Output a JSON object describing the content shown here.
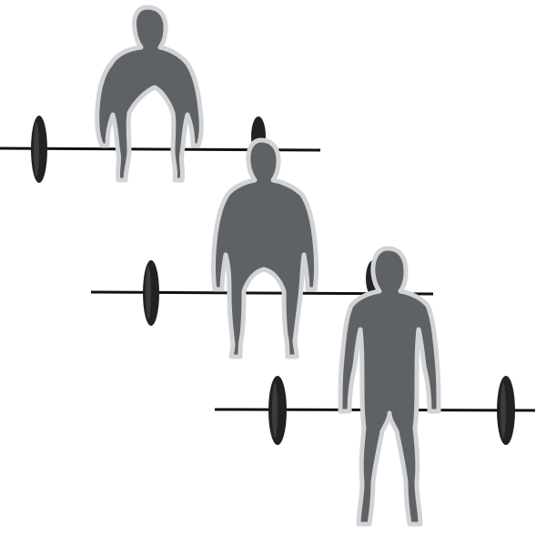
{
  "illustration": {
    "subject": "deadlift-sequence",
    "phases": [
      {
        "id": "setup"
      },
      {
        "id": "lift"
      },
      {
        "id": "lockout"
      }
    ]
  },
  "colors": {
    "background": "#ffffff",
    "figure_fill": "#5e6266",
    "figure_outline": "#d2d3d5",
    "barbell": "#111111",
    "plate": "#222222",
    "plate_highlight": "#3c3c3c"
  }
}
